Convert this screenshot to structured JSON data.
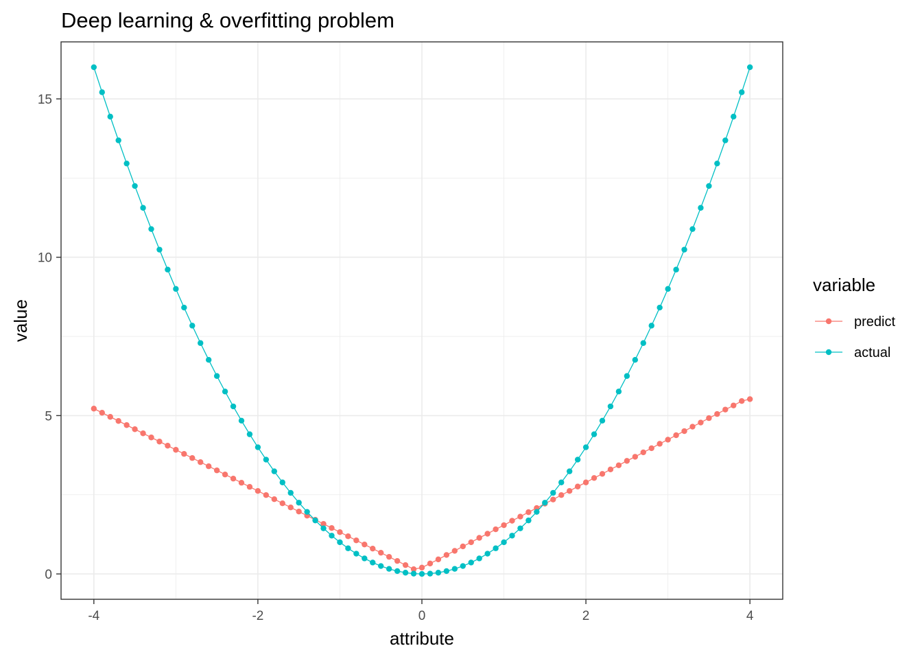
{
  "chart_data": {
    "type": "line",
    "title": "Deep learning & overfitting problem",
    "xlabel": "attribute",
    "ylabel": "value",
    "xlim": [
      -4.4,
      4.4
    ],
    "ylim": [
      -0.8,
      16.8
    ],
    "x_ticks": [
      -4,
      -2,
      0,
      2,
      4
    ],
    "x_tick_labels": [
      "-4",
      "-2",
      "0",
      "2",
      "4"
    ],
    "y_ticks": [
      0,
      5,
      10,
      15
    ],
    "y_tick_labels": [
      "0",
      "5",
      "10",
      "15"
    ],
    "grid": true,
    "legend_title": "variable",
    "legend_position": "right",
    "x": [
      -4.0,
      -3.9,
      -3.8,
      -3.7,
      -3.6,
      -3.5,
      -3.4,
      -3.3,
      -3.2,
      -3.1,
      -3.0,
      -2.9,
      -2.8,
      -2.7,
      -2.6,
      -2.5,
      -2.4,
      -2.3,
      -2.2,
      -2.1,
      -2.0,
      -1.9,
      -1.8,
      -1.7,
      -1.6,
      -1.5,
      -1.4,
      -1.3,
      -1.2,
      -1.1,
      -1.0,
      -0.9,
      -0.8,
      -0.7,
      -0.6,
      -0.5,
      -0.4,
      -0.3,
      -0.2,
      -0.1,
      0.0,
      0.1,
      0.2,
      0.3,
      0.4,
      0.5,
      0.6,
      0.7,
      0.8,
      0.9,
      1.0,
      1.1,
      1.2,
      1.3,
      1.4,
      1.5,
      1.6,
      1.7,
      1.8,
      1.9,
      2.0,
      2.1,
      2.2,
      2.3,
      2.4,
      2.5,
      2.6,
      2.7,
      2.8,
      2.9,
      3.0,
      3.1,
      3.2,
      3.3,
      3.4,
      3.5,
      3.6,
      3.7,
      3.8,
      3.9,
      4.0
    ],
    "series": [
      {
        "name": "predict",
        "color": "#F8766D",
        "values": [
          5.22,
          5.09,
          4.96,
          4.83,
          4.7,
          4.57,
          4.44,
          4.31,
          4.18,
          4.05,
          3.92,
          3.79,
          3.66,
          3.53,
          3.4,
          3.27,
          3.14,
          3.01,
          2.88,
          2.75,
          2.62,
          2.49,
          2.36,
          2.23,
          2.1,
          1.97,
          1.84,
          1.71,
          1.58,
          1.45,
          1.32,
          1.19,
          1.06,
          0.93,
          0.8,
          0.67,
          0.54,
          0.41,
          0.28,
          0.15,
          0.2,
          0.33,
          0.46,
          0.6,
          0.73,
          0.87,
          1.0,
          1.14,
          1.27,
          1.41,
          1.54,
          1.68,
          1.81,
          1.95,
          2.08,
          2.22,
          2.35,
          2.49,
          2.62,
          2.76,
          2.89,
          3.03,
          3.16,
          3.3,
          3.43,
          3.57,
          3.7,
          3.84,
          3.97,
          4.11,
          4.24,
          4.38,
          4.51,
          4.65,
          4.78,
          4.92,
          5.05,
          5.19,
          5.32,
          5.46,
          5.52
        ]
      },
      {
        "name": "actual",
        "color": "#00BFC4",
        "values": [
          16.0,
          15.21,
          14.44,
          13.69,
          12.96,
          12.25,
          11.56,
          10.89,
          10.24,
          9.61,
          9.0,
          8.41,
          7.84,
          7.29,
          6.76,
          6.25,
          5.76,
          5.29,
          4.84,
          4.41,
          4.0,
          3.61,
          3.24,
          2.89,
          2.56,
          2.25,
          1.96,
          1.69,
          1.44,
          1.21,
          1.0,
          0.81,
          0.64,
          0.49,
          0.36,
          0.25,
          0.16,
          0.09,
          0.04,
          0.01,
          0.0,
          0.01,
          0.04,
          0.09,
          0.16,
          0.25,
          0.36,
          0.49,
          0.64,
          0.81,
          1.0,
          1.21,
          1.44,
          1.69,
          1.96,
          2.25,
          2.56,
          2.89,
          3.24,
          3.61,
          4.0,
          4.41,
          4.84,
          5.29,
          5.76,
          6.25,
          6.76,
          7.29,
          7.84,
          8.41,
          9.0,
          9.61,
          10.24,
          10.89,
          11.56,
          12.25,
          12.96,
          13.69,
          14.44,
          15.21,
          16.0
        ]
      }
    ]
  }
}
